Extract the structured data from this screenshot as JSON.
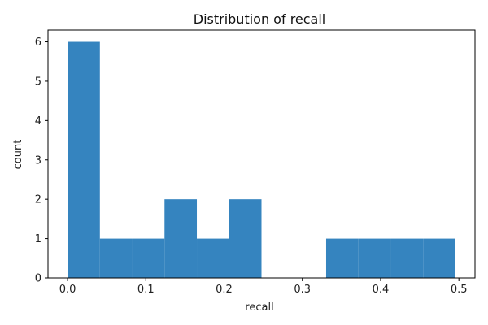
{
  "chart_data": {
    "type": "bar",
    "subtype": "histogram",
    "title": "Distribution of recall",
    "xlabel": "recall",
    "ylabel": "count",
    "bins": [
      {
        "start": 0.0,
        "end": 0.0413,
        "count": 6
      },
      {
        "start": 0.0413,
        "end": 0.0826,
        "count": 1
      },
      {
        "start": 0.0826,
        "end": 0.1239,
        "count": 1
      },
      {
        "start": 0.1239,
        "end": 0.1652,
        "count": 2
      },
      {
        "start": 0.1652,
        "end": 0.2065,
        "count": 1
      },
      {
        "start": 0.2065,
        "end": 0.2478,
        "count": 2
      },
      {
        "start": 0.2478,
        "end": 0.2891,
        "count": 0
      },
      {
        "start": 0.2891,
        "end": 0.3304,
        "count": 0
      },
      {
        "start": 0.3304,
        "end": 0.3717,
        "count": 1
      },
      {
        "start": 0.3717,
        "end": 0.413,
        "count": 1
      },
      {
        "start": 0.413,
        "end": 0.4543,
        "count": 1
      },
      {
        "start": 0.4543,
        "end": 0.4956,
        "count": 1
      }
    ],
    "xlim": [
      -0.025,
      0.5206
    ],
    "ylim": [
      0,
      6.3
    ],
    "xticks": [
      {
        "value": 0.0,
        "label": "0.0"
      },
      {
        "value": 0.1,
        "label": "0.1"
      },
      {
        "value": 0.2,
        "label": "0.2"
      },
      {
        "value": 0.3,
        "label": "0.3"
      },
      {
        "value": 0.4,
        "label": "0.4"
      },
      {
        "value": 0.5,
        "label": "0.5"
      }
    ],
    "yticks": [
      {
        "value": 0,
        "label": "0"
      },
      {
        "value": 1,
        "label": "1"
      },
      {
        "value": 2,
        "label": "2"
      },
      {
        "value": 3,
        "label": "3"
      },
      {
        "value": 4,
        "label": "4"
      },
      {
        "value": 5,
        "label": "5"
      },
      {
        "value": 6,
        "label": "6"
      }
    ],
    "bar_color": "#3584bf",
    "grid": false,
    "legend": "none"
  }
}
